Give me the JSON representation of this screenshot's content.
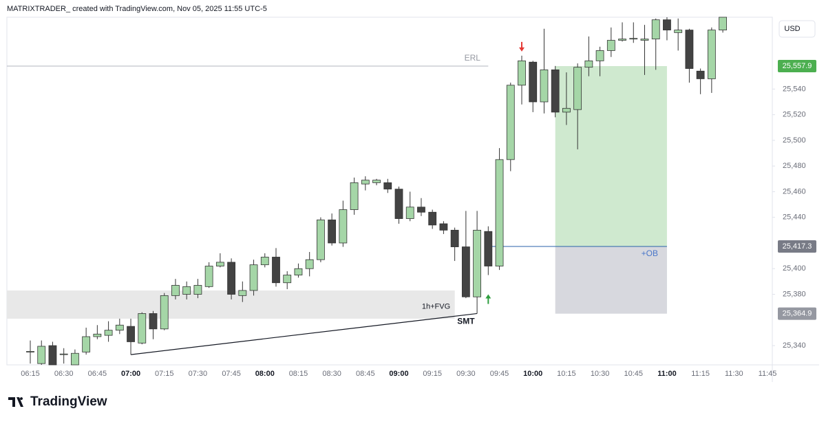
{
  "header": {
    "caption": "MATRIXTRADER_ created with TradingView.com, Nov 05, 2025 11:55 UTC-5"
  },
  "footer": {
    "logo": "TradingView"
  },
  "chart_data": {
    "type": "candlestick",
    "currency": "USD",
    "categories": [
      "06:15",
      null,
      null,
      "06:30",
      null,
      null,
      "06:45",
      null,
      null,
      "07:00",
      null,
      null,
      "07:15",
      null,
      null,
      "07:30",
      null,
      null,
      "07:45",
      null,
      null,
      "08:00",
      null,
      null,
      "08:15",
      null,
      null,
      "08:30",
      null,
      null,
      "08:45",
      null,
      null,
      "09:00",
      null,
      null,
      "09:15",
      null,
      null,
      "09:30",
      null,
      null,
      "09:45",
      null,
      null,
      "10:00",
      null,
      null,
      "10:15",
      null,
      null,
      "10:30",
      null,
      null,
      "10:45",
      null,
      null,
      "11:00",
      null,
      null,
      "11:15",
      null,
      null,
      "11:30",
      null,
      null,
      "11:45"
    ],
    "open": [
      25335,
      25326,
      25340,
      25333,
      25325,
      25335,
      25347,
      25348,
      25352,
      25355,
      25342,
      25365,
      25353,
      25379,
      25380,
      25380,
      25386,
      25402,
      25405,
      25379,
      25383,
      25403,
      25409,
      25389,
      25395,
      25400,
      25407,
      25438,
      25420,
      25446,
      25466,
      25467,
      25467,
      25462,
      25439,
      25448,
      25444,
      25435,
      25430,
      25417,
      25378,
      25429,
      25402,
      25485,
      25543,
      25561,
      25530,
      25555,
      25522,
      25524,
      25557,
      25562,
      25570,
      25578,
      25579,
      25578,
      25579,
      25594,
      25584,
      25586,
      25554,
      25548,
      25586,
      null,
      null,
      null,
      null
    ],
    "high": [
      25344,
      25344,
      25343,
      25338,
      25337,
      25354,
      25356,
      25359,
      25361,
      25361,
      25366,
      25367,
      25381,
      25392,
      25390,
      25392,
      25405,
      25412,
      25408,
      25390,
      25407,
      25412,
      25416,
      25398,
      25404,
      25413,
      25440,
      25443,
      25453,
      25471,
      25472,
      25470,
      25470,
      25464,
      25460,
      25455,
      25446,
      25437,
      25432,
      25445,
      25445,
      25433,
      25494,
      25545,
      25566,
      25562,
      25587,
      25558,
      25553,
      25560,
      25581,
      25573,
      25588,
      25592,
      25592,
      25590,
      25595,
      25596,
      25595,
      25587,
      25556,
      25588,
      25596,
      null,
      null,
      null,
      null
    ],
    "low": [
      25326,
      25325,
      25325,
      25326,
      25325,
      25333,
      25345,
      25343,
      25349,
      25333,
      25341,
      25345,
      25352,
      25376,
      25376,
      25377,
      25385,
      25401,
      25376,
      25374,
      25379,
      25401,
      25386,
      25384,
      25393,
      25394,
      25405,
      25418,
      25417,
      25442,
      25461,
      25465,
      25459,
      25435,
      25437,
      25441,
      25431,
      25427,
      25406,
      25377,
      25365,
      25395,
      25399,
      25476,
      25528,
      25522,
      25521,
      25518,
      25512,
      25493,
      25550,
      25550,
      25565,
      25577,
      25576,
      25551,
      25555,
      25578,
      25570,
      25545,
      25536,
      25537,
      25584,
      null,
      null,
      null,
      null
    ],
    "close": [
      25335.5,
      25339.5,
      25325,
      25333.5,
      25334,
      25347,
      25349,
      25352,
      25356,
      25343,
      25365,
      25353,
      25379,
      25387,
      25386,
      25387,
      25402,
      25405,
      25380,
      25383,
      25403,
      25409,
      25389,
      25395,
      25400,
      25407,
      25438,
      25420,
      25446,
      25467,
      25469,
      25469,
      25462,
      25439,
      25448,
      25444,
      25434,
      25430,
      25417,
      25378,
      25430,
      25402,
      25485,
      25543,
      25562,
      25530,
      25555,
      25522,
      25525,
      25557,
      25562,
      25570,
      25578,
      25579,
      25579.5,
      25579,
      25594,
      25586,
      25586,
      25556,
      25548,
      25586,
      25596,
      null,
      null,
      null,
      null
    ],
    "up_color": "#a5d6a7",
    "down_color": "#434343",
    "ylim": [
      25325,
      25596
    ],
    "yticks": [
      {
        "value": 25340,
        "label": "25,340"
      },
      {
        "value": 25380,
        "label": "25,380"
      },
      {
        "value": 25400,
        "label": "25,400"
      },
      {
        "value": 25440,
        "label": "25,440"
      },
      {
        "value": 25460,
        "label": "25,460"
      },
      {
        "value": 25480,
        "label": "25,480"
      },
      {
        "value": 25500,
        "label": "25,500"
      },
      {
        "value": 25520,
        "label": "25,520"
      },
      {
        "value": 25540,
        "label": "25,540"
      }
    ],
    "grid": false,
    "price_labels": [
      {
        "value": 25557.9,
        "label": "25,557.9",
        "color": "#4caf50"
      },
      {
        "value": 25417.3,
        "label": "25,417.3",
        "color": "#787b86"
      },
      {
        "value": 25364.9,
        "label": "25,364.9",
        "color": "#9598a1"
      }
    ],
    "fvg_range": [
      25361,
      25383
    ],
    "annotations": {
      "erl": "ERL",
      "fvg": "1h+FVG",
      "smt": "SMT",
      "ob": "+OB"
    }
  }
}
